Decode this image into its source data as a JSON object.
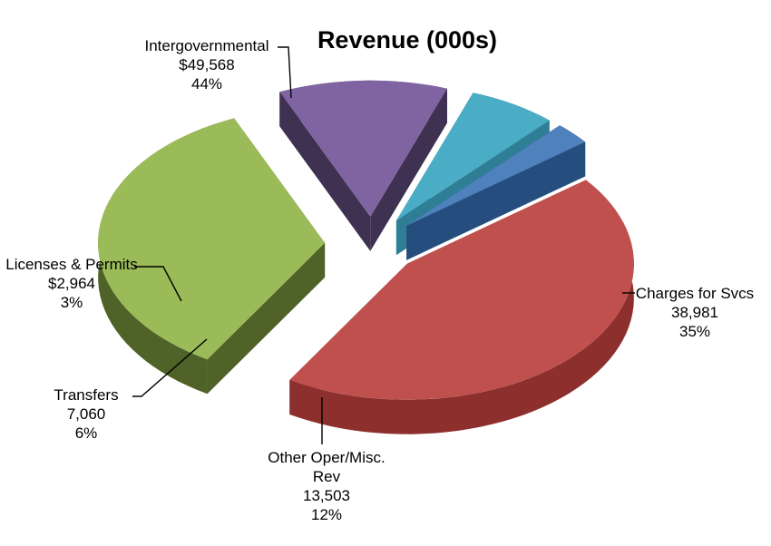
{
  "chart_data": {
    "type": "pie",
    "style": "3d-exploded",
    "title": "Revenue (000s)",
    "legend": "none",
    "slices": [
      {
        "name": "Intergovernmental",
        "value_label": "$49,568",
        "value": 49568,
        "percent": 44,
        "percent_label": "44%",
        "color": "#c0504d",
        "side_color": "#8c2f2d"
      },
      {
        "name": "Charges for Svcs",
        "value_label": "38,981",
        "value": 38981,
        "percent": 35,
        "percent_label": "35%",
        "color": "#9bbb59",
        "side_color": "#4f6228"
      },
      {
        "name": "Other Oper/Misc. Rev",
        "name_lines": [
          "Other Oper/Misc.",
          "Rev"
        ],
        "value_label": "13,503",
        "value": 13503,
        "percent": 12,
        "percent_label": "12%",
        "color": "#8064a2",
        "side_color": "#3f3151"
      },
      {
        "name": "Transfers",
        "value_label": "7,060",
        "value": 7060,
        "percent": 6,
        "percent_label": "6%",
        "color": "#4bacc6",
        "side_color": "#2e7f95"
      },
      {
        "name": "Licenses & Permits",
        "value_label": "$2,964",
        "value": 2964,
        "percent": 3,
        "percent_label": "3%",
        "color": "#4f81bd",
        "side_color": "#254e7e"
      }
    ]
  }
}
